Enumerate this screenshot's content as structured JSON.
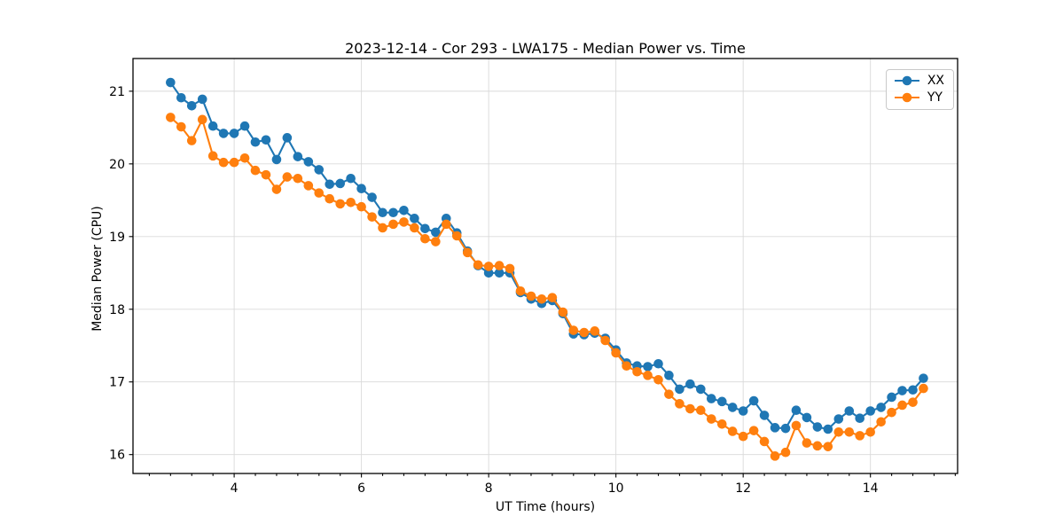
{
  "figure": {
    "title": "2023-12-14 - Cor 293 - LWA175 - Median Power vs. Time",
    "xlabel": "UT Time (hours)",
    "ylabel": "Median Power (CPU)"
  },
  "chart_data": {
    "type": "line",
    "title": "2023-12-14 - Cor 293 - LWA175 - Median Power vs. Time",
    "xlabel": "UT Time (hours)",
    "ylabel": "Median Power (CPU)",
    "grid": true,
    "legend_position": "upper right",
    "xlim": [
      2.41,
      15.37
    ],
    "ylim": [
      15.74,
      21.45
    ],
    "x_major_ticks": [
      4,
      6,
      8,
      10,
      12,
      14
    ],
    "x_minor_step": 0.3333,
    "y_major_ticks": [
      16,
      17,
      18,
      19,
      20,
      21
    ],
    "x": [
      3.0,
      3.167,
      3.333,
      3.5,
      3.667,
      3.833,
      4.0,
      4.167,
      4.333,
      4.5,
      4.667,
      4.833,
      5.0,
      5.167,
      5.333,
      5.5,
      5.667,
      5.833,
      6.0,
      6.167,
      6.333,
      6.5,
      6.667,
      6.833,
      7.0,
      7.167,
      7.333,
      7.5,
      7.667,
      7.833,
      8.0,
      8.167,
      8.333,
      8.5,
      8.667,
      8.833,
      9.0,
      9.167,
      9.333,
      9.5,
      9.667,
      9.833,
      10.0,
      10.167,
      10.333,
      10.5,
      10.667,
      10.833,
      11.0,
      11.167,
      11.333,
      11.5,
      11.667,
      11.833,
      12.0,
      12.167,
      12.333,
      12.5,
      12.667,
      12.833,
      13.0,
      13.167,
      13.333,
      13.5,
      13.667,
      13.833,
      14.0,
      14.167,
      14.333,
      14.5,
      14.667,
      14.833
    ],
    "series": [
      {
        "name": "XX",
        "color": "#1f77b4",
        "values": [
          21.12,
          20.91,
          20.8,
          20.89,
          20.52,
          20.42,
          20.42,
          20.52,
          20.3,
          20.33,
          20.06,
          20.36,
          20.1,
          20.03,
          19.92,
          19.72,
          19.73,
          19.8,
          19.66,
          19.54,
          19.33,
          19.33,
          19.36,
          19.25,
          19.11,
          19.06,
          19.25,
          19.05,
          18.8,
          18.6,
          18.5,
          18.5,
          18.5,
          18.23,
          18.14,
          18.08,
          18.12,
          17.94,
          17.66,
          17.65,
          17.67,
          17.6,
          17.44,
          17.26,
          17.22,
          17.21,
          17.25,
          17.09,
          16.9,
          16.97,
          16.9,
          16.77,
          16.73,
          16.65,
          16.6,
          16.74,
          16.54,
          16.37,
          16.36,
          16.61,
          16.51,
          16.38,
          16.35,
          16.49,
          16.6,
          16.5,
          16.6,
          16.65,
          16.79,
          16.88,
          16.89,
          17.05
        ]
      },
      {
        "name": "YY",
        "color": "#ff7f0e",
        "values": [
          20.64,
          20.51,
          20.32,
          20.61,
          20.11,
          20.02,
          20.02,
          20.08,
          19.91,
          19.85,
          19.65,
          19.82,
          19.8,
          19.7,
          19.6,
          19.52,
          19.45,
          19.47,
          19.41,
          19.27,
          19.12,
          19.17,
          19.2,
          19.12,
          18.97,
          18.93,
          19.17,
          19.01,
          18.78,
          18.61,
          18.59,
          18.6,
          18.56,
          18.25,
          18.18,
          18.14,
          18.16,
          17.96,
          17.71,
          17.68,
          17.7,
          17.57,
          17.4,
          17.22,
          17.14,
          17.09,
          17.03,
          16.83,
          16.7,
          16.63,
          16.61,
          16.49,
          16.42,
          16.32,
          16.25,
          16.33,
          16.18,
          15.98,
          16.03,
          16.4,
          16.16,
          16.12,
          16.11,
          16.31,
          16.31,
          16.26,
          16.31,
          16.45,
          16.58,
          16.68,
          16.72,
          16.91
        ]
      }
    ]
  }
}
